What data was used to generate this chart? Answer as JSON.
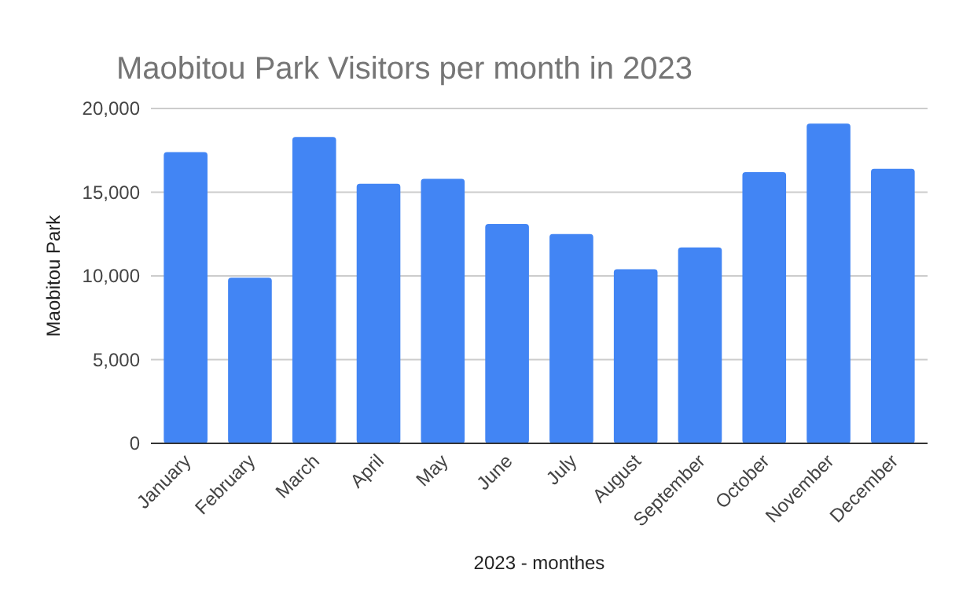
{
  "chart_data": {
    "type": "bar",
    "title": "Maobitou Park Visitors per month in 2023",
    "xlabel": "2023 - monthes",
    "ylabel": "Maobitou Park",
    "categories": [
      "January",
      "February",
      "March",
      "April",
      "May",
      "June",
      "July",
      "August",
      "September",
      "October",
      "November",
      "December"
    ],
    "values": [
      17400,
      9900,
      18300,
      15500,
      15800,
      13100,
      12500,
      10400,
      11700,
      16200,
      19100,
      16400
    ],
    "color": "#4285f4",
    "ylim": [
      0,
      20000
    ],
    "yticks": [
      {
        "value": 0,
        "label": "0"
      },
      {
        "value": 5000,
        "label": "5,000"
      },
      {
        "value": 10000,
        "label": "10,000"
      },
      {
        "value": 15000,
        "label": "15,000"
      },
      {
        "value": 20000,
        "label": "20,000"
      }
    ],
    "grid": true
  }
}
